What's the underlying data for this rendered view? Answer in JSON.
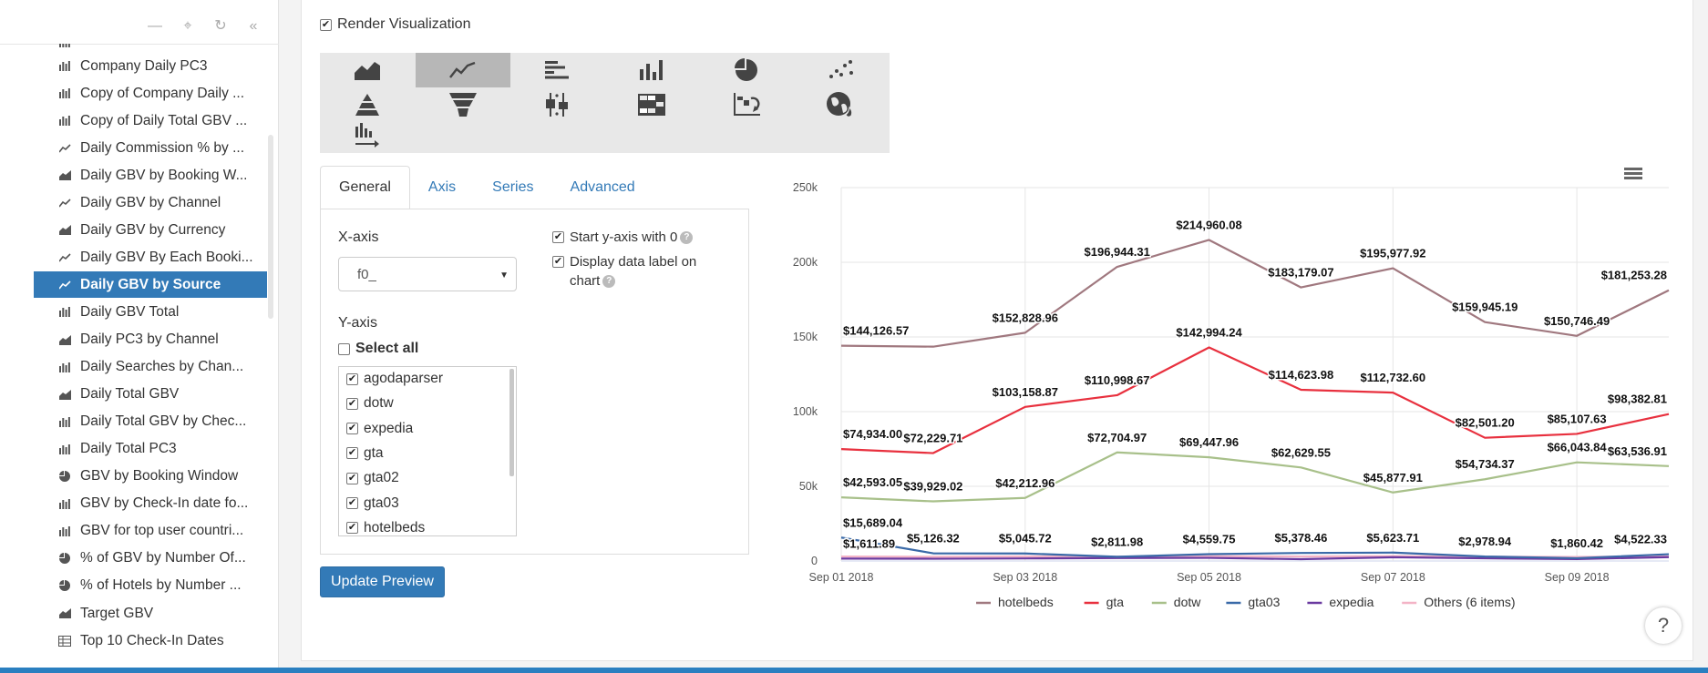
{
  "sidebar": {
    "tools": {
      "collapse": "—",
      "locate": "⌖",
      "refresh": "↻",
      "hide": "«"
    },
    "items": [
      {
        "label": "Company Daily PC3",
        "icon": "bar-icon",
        "active": false
      },
      {
        "label": "Copy of Company Daily ...",
        "icon": "bar-icon",
        "active": false
      },
      {
        "label": "Copy of Daily Total GBV ...",
        "icon": "bar-icon",
        "active": false
      },
      {
        "label": "Daily Commission % by ...",
        "icon": "line-icon",
        "active": false
      },
      {
        "label": "Daily GBV by Booking W...",
        "icon": "area-icon",
        "active": false
      },
      {
        "label": "Daily GBV by Channel",
        "icon": "line-icon",
        "active": false
      },
      {
        "label": "Daily GBV by Currency",
        "icon": "area-icon",
        "active": false
      },
      {
        "label": "Daily GBV By Each Booki...",
        "icon": "line-icon",
        "active": false
      },
      {
        "label": "Daily GBV by Source",
        "icon": "line-icon",
        "active": true
      },
      {
        "label": "Daily GBV Total",
        "icon": "bar-icon",
        "active": false
      },
      {
        "label": "Daily PC3 by Channel",
        "icon": "area-icon",
        "active": false
      },
      {
        "label": "Daily Searches by Chan...",
        "icon": "bar-icon",
        "active": false
      },
      {
        "label": "Daily Total GBV",
        "icon": "area-icon",
        "active": false
      },
      {
        "label": "Daily Total GBV by Chec...",
        "icon": "bar-icon",
        "active": false
      },
      {
        "label": "Daily Total PC3",
        "icon": "bar-icon",
        "active": false
      },
      {
        "label": "GBV by Booking Window",
        "icon": "pie-icon",
        "active": false
      },
      {
        "label": "GBV by Check-In date fo...",
        "icon": "bar-icon",
        "active": false
      },
      {
        "label": "GBV for top user countri...",
        "icon": "bar-icon",
        "active": false
      },
      {
        "label": "% of GBV by Number Of...",
        "icon": "pie-icon",
        "active": false
      },
      {
        "label": "% of Hotels by Number ...",
        "icon": "pie-icon",
        "active": false
      },
      {
        "label": "Target GBV",
        "icon": "area-icon",
        "active": false
      },
      {
        "label": "Top 10 Check-In Dates",
        "icon": "table-icon",
        "active": false
      }
    ]
  },
  "main": {
    "render_label": "Render Visualization",
    "render_checked": "✔",
    "viz_types": [
      "area-chart-icon",
      "line-chart-icon",
      "horizontal-bar-icon",
      "column-chart-icon",
      "pie-chart-icon",
      "scatter-icon",
      "pyramid-icon",
      "funnel-icon",
      "box-plot-icon",
      "heatmap-icon",
      "waterfall-icon",
      "map-icon",
      "bar-race-icon"
    ],
    "tabs": [
      "General",
      "Axis",
      "Series",
      "Advanced"
    ],
    "active_tab": "General",
    "xaxis_label": "X-axis",
    "xaxis_value": "f0_",
    "yaxis_label": "Y-axis",
    "select_all_label": "Select all",
    "start_y_zero_label": "Start y-axis with 0",
    "display_data_label": "Display data label on chart",
    "series_options": [
      "agodaparser",
      "dotw",
      "expedia",
      "gta",
      "gta02",
      "gta03",
      "hotelbeds"
    ],
    "update_button": "Update Preview",
    "help_fab": "?"
  },
  "chart_data": {
    "type": "line",
    "x": [
      "Sep 01 2018",
      "Sep 02 2018",
      "Sep 03 2018",
      "Sep 04 2018",
      "Sep 05 2018",
      "Sep 06 2018",
      "Sep 07 2018",
      "Sep 08 2018",
      "Sep 09 2018",
      "Sep 10 2018"
    ],
    "x_tick_labels": [
      "Sep 01 2018",
      "Sep 03 2018",
      "Sep 05 2018",
      "Sep 07 2018",
      "Sep 09 2018"
    ],
    "ylim": [
      0,
      250000
    ],
    "y_tick_labels": [
      "0",
      "50k",
      "100k",
      "150k",
      "200k",
      "250k"
    ],
    "y_ticks": [
      0,
      50000,
      100000,
      150000,
      200000,
      250000
    ],
    "grid": true,
    "legend_position": "bottom",
    "menu_icon": "hamburger-menu-icon",
    "series": [
      {
        "name": "hotelbeds",
        "color": "#a0787f",
        "values": [
          144126.57,
          143500,
          152828.96,
          196944.31,
          214960.08,
          183179.07,
          195977.92,
          159945.19,
          150746.49,
          181253.28
        ],
        "labels": [
          "$144,126.57",
          "",
          "$152,828.96",
          "$196,944.31",
          "$214,960.08",
          "$183,179.07",
          "$195,977.92",
          "$159,945.19",
          "$150,746.49",
          "$181,253.28"
        ]
      },
      {
        "name": "gta",
        "color": "#e8303e",
        "values": [
          74934.0,
          72229.71,
          103158.87,
          110998.67,
          142994.24,
          114623.98,
          112732.6,
          82501.2,
          85107.63,
          98382.81
        ],
        "labels": [
          "$74,934.00",
          "$72,229.71",
          "$103,158.87",
          "$110,998.67",
          "$142,994.24",
          "$114,623.98",
          "$112,732.60",
          "$82,501.20",
          "$85,107.63",
          "$98,382.81"
        ]
      },
      {
        "name": "dotw",
        "color": "#a8c08a",
        "values": [
          42593.05,
          39929.02,
          42212.96,
          72704.97,
          69447.96,
          62629.55,
          45877.91,
          54734.37,
          66043.84,
          63536.91
        ],
        "labels": [
          "$42,593.05",
          "$39,929.02",
          "$42,212.96",
          "$72,704.97",
          "$69,447.96",
          "$62,629.55",
          "$45,877.91",
          "$54,734.37",
          "$66,043.84",
          "$63,536.91"
        ]
      },
      {
        "name": "gta03",
        "color": "#3a6aa8",
        "values": [
          15689.04,
          5126.32,
          5045.72,
          2811.98,
          4559.75,
          5378.46,
          5623.71,
          2978.94,
          1860.42,
          4522.33
        ],
        "labels": [
          "$15,689.04",
          "$5,126.32",
          "$5,045.72",
          "$2,811.98",
          "$4,559.75",
          "$5,378.46",
          "$5,623.71",
          "$2,978.94",
          "$1,860.42",
          "$4,522.33"
        ]
      },
      {
        "name": "expedia",
        "color": "#6a3aa0",
        "values": [
          1611.89,
          1500,
          1700,
          2000,
          2100,
          1200,
          2500,
          1800,
          1300,
          2600
        ],
        "labels": [
          "$1,611.89",
          "",
          "",
          "",
          "",
          "",
          "",
          "",
          "",
          ""
        ]
      },
      {
        "name": "Others (6 items)",
        "color": "#f3b3c6",
        "values": [
          3000,
          2800,
          3100,
          2900,
          3200,
          3000,
          3300,
          2900,
          2700,
          3100
        ],
        "labels": [
          "",
          "",
          "",
          "",
          "",
          "",
          "",
          "",
          "",
          ""
        ]
      }
    ]
  }
}
